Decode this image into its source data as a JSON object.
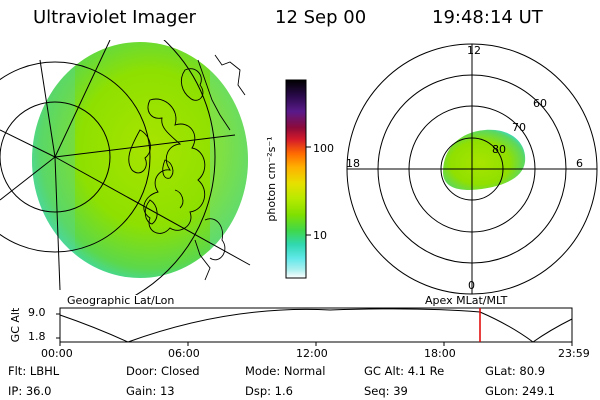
{
  "header": {
    "title": "Ultraviolet Imager",
    "date": "12 Sep 00",
    "time": "19:48:14 UT"
  },
  "colorbar": {
    "label": "photon cm⁻²s⁻¹",
    "ticks": [
      "100",
      "10"
    ],
    "colors": [
      "#000000",
      "#2a0a4a",
      "#5a1a8a",
      "#8b0a3a",
      "#d41a2a",
      "#ff6a00",
      "#ffb000",
      "#e8e000",
      "#b8ea00",
      "#80e000",
      "#40d84a",
      "#30d8b0",
      "#60e8e8",
      "#b0f0f0",
      "#ffffff"
    ]
  },
  "polar": {
    "clock_labels": {
      "top": "12",
      "left": "18",
      "right": "6",
      "bottom": "0"
    },
    "lat_labels": [
      "60",
      "70",
      "80"
    ]
  },
  "labels": {
    "left_panel": "Geographic Lat/Lon",
    "right_panel": "Apex  MLat/MLT"
  },
  "altitude_plot": {
    "ylabel": "GC Alt",
    "yticks": [
      "9.0",
      "1.8"
    ],
    "xticks": [
      "00:00",
      "06:00",
      "12:00",
      "18:00",
      "23:59"
    ],
    "current_time_color": "#e00000"
  },
  "meta": {
    "flt": "Flt: LBHL",
    "door": "Door: Closed",
    "mode": "Mode: Normal",
    "gc_alt": "GC Alt: 4.1 Re",
    "glat": "GLat:  80.9",
    "ip": "IP: 36.0",
    "gain": "Gain: 13",
    "dsp": "Dsp:   1.6",
    "seq": "Seq: 39",
    "glon": "GLon: 249.1"
  }
}
